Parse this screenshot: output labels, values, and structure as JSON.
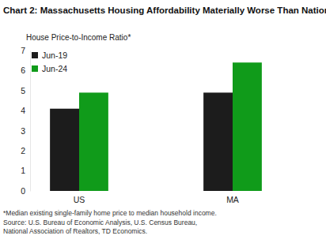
{
  "chart_data": {
    "type": "bar",
    "title": "Chart 2: Massachusetts Housing Affordability Materially Worse Than Nation",
    "y_label": "House Price-to-Income Ratio*",
    "categories": [
      "US",
      "MA"
    ],
    "series": [
      {
        "name": "Jun-19",
        "color": "#1c1c1c",
        "values": [
          4.1,
          4.9
        ]
      },
      {
        "name": "Jun-24",
        "color": "#109b1a",
        "values": [
          4.9,
          6.4
        ]
      }
    ],
    "ylim": [
      0,
      7
    ],
    "yticks": [
      0,
      1,
      2,
      3,
      4,
      5,
      6,
      7
    ],
    "grid": false,
    "legend": "upper left",
    "footnote": [
      "*Median existing single-family home price to median household income.",
      "Source: U.S. Bureau of Economic Analysis, U.S. Census Bureau,",
      "National Association of Realtors, TD Economics."
    ]
  }
}
